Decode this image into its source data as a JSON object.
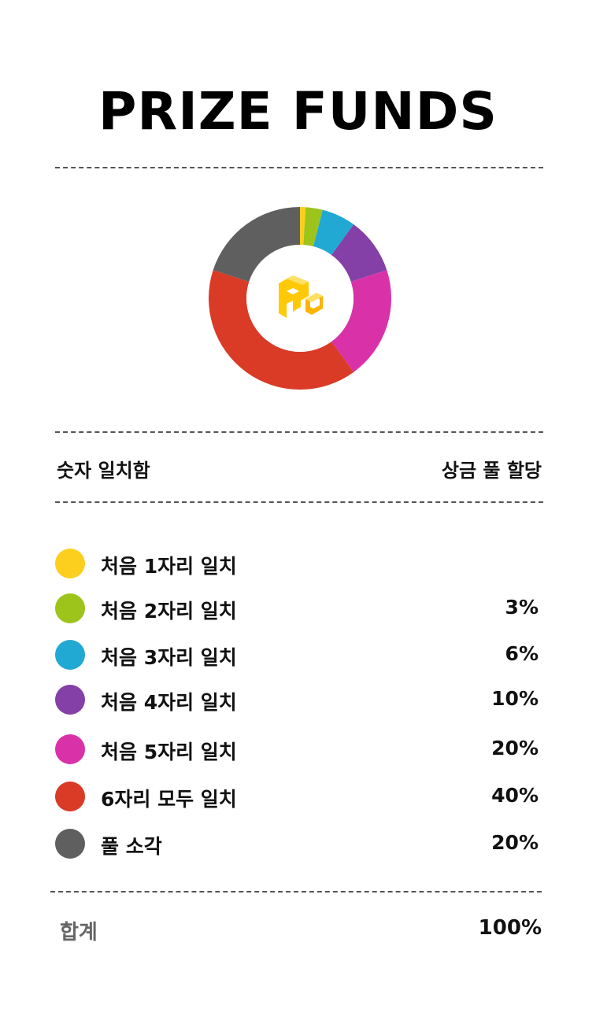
{
  "title": "PRIZE FUNDS",
  "table_header": {
    "left": "숫자 일치함",
    "right": "상금 풀 할당"
  },
  "legend": [
    {
      "label": "처음 1자리 일치",
      "value": "",
      "color": "#FCCF1E"
    },
    {
      "label": "처음 2자리 일치",
      "value": "3%",
      "color": "#9DC41B"
    },
    {
      "label": "처음 3자리 일치",
      "value": "6%",
      "color": "#22A9D3"
    },
    {
      "label": "처음 4자리 일치",
      "value": "10%",
      "color": "#8440A6"
    },
    {
      "label": "처음 5자리 일치",
      "value": "20%",
      "color": "#D932A9"
    },
    {
      "label": "6자리 모두 일치",
      "value": "40%",
      "color": "#D93B26"
    },
    {
      "label": "풀 소각",
      "value": "20%",
      "color": "#5F5F5F"
    }
  ],
  "total": {
    "label": "합계",
    "value": "100%"
  },
  "chart_data": {
    "type": "pie",
    "variant": "donut",
    "title": "",
    "categories": [
      "처음 1자리 일치",
      "처음 2자리 일치",
      "처음 3자리 일치",
      "처음 4자리 일치",
      "처음 5자리 일치",
      "6자리 모두 일치",
      "풀 소각"
    ],
    "values": [
      1,
      3,
      6,
      10,
      20,
      40,
      20
    ],
    "colors": [
      "#FCCF1E",
      "#9DC41B",
      "#22A9D3",
      "#8440A6",
      "#D932A9",
      "#D93B26",
      "#5F5F5F"
    ],
    "center_icon": "logo-icon"
  }
}
